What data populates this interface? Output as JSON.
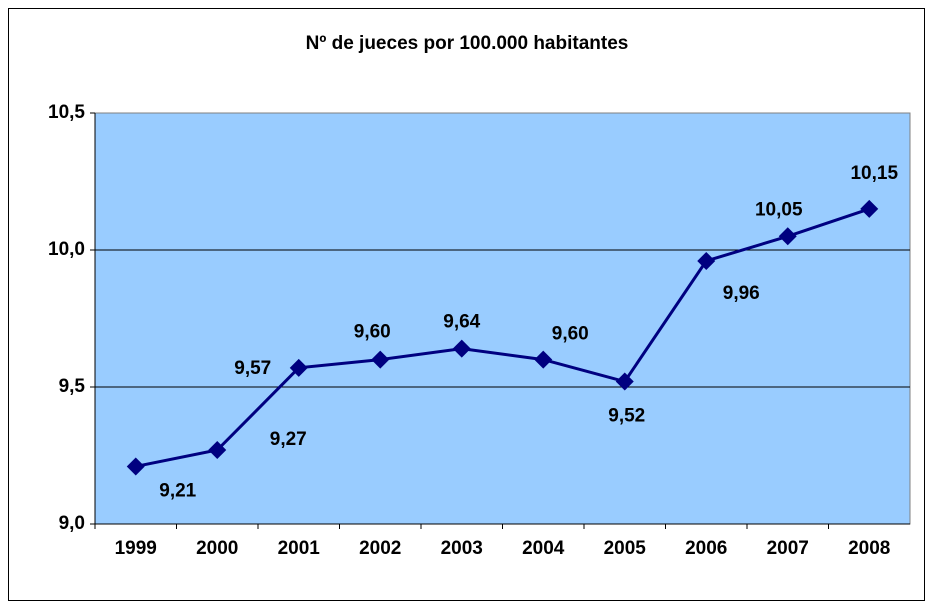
{
  "chart_data": {
    "type": "line",
    "title": "Nº de jueces por 100.000 habitantes",
    "categories": [
      "1999",
      "2000",
      "2001",
      "2002",
      "2003",
      "2004",
      "2005",
      "2006",
      "2007",
      "2008"
    ],
    "series": [
      {
        "name": "Nº de jueces por 100.000 habitantes",
        "color": "#000080",
        "values": [
          9.21,
          9.27,
          9.57,
          9.6,
          9.64,
          9.6,
          9.52,
          9.96,
          10.05,
          10.15
        ],
        "value_labels": [
          "9,21",
          "9,27",
          "9,57",
          "9,60",
          "9,64",
          "9,60",
          "9,52",
          "9,96",
          "10,05",
          "10,15"
        ]
      }
    ],
    "ylim": [
      9.0,
      10.5
    ],
    "yticks": [
      {
        "value": 9.0,
        "label": "9,0"
      },
      {
        "value": 9.5,
        "label": "9,5"
      },
      {
        "value": 10.0,
        "label": "10,0"
      },
      {
        "value": 10.5,
        "label": "10,5"
      }
    ],
    "grid": true,
    "plot_background": "#99ccff"
  }
}
